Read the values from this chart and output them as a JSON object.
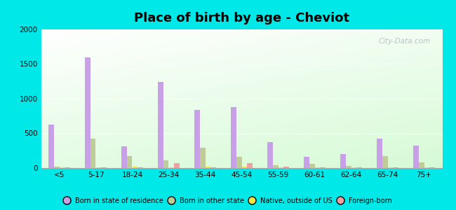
{
  "title": "Place of birth by age - Cheviot",
  "categories": [
    "<5",
    "5-17",
    "18-24",
    "25-34",
    "35-44",
    "45-54",
    "55-59",
    "60-61",
    "62-64",
    "65-74",
    "75+"
  ],
  "series": {
    "Born in state of residence": [
      630,
      1600,
      310,
      1240,
      840,
      880,
      370,
      160,
      200,
      420,
      320
    ],
    "Born in other state": [
      20,
      420,
      170,
      110,
      295,
      165,
      45,
      60,
      30,
      175,
      80
    ],
    "Native, outside of US": [
      10,
      15,
      20,
      15,
      20,
      20,
      15,
      10,
      10,
      15,
      15
    ],
    "Foreign-born": [
      10,
      15,
      15,
      75,
      15,
      75,
      20,
      10,
      10,
      15,
      15
    ]
  },
  "colors": {
    "Born in state of residence": "#c8a0e8",
    "Born in other state": "#c0cc98",
    "Native, outside of US": "#f0e840",
    "Foreign-born": "#f0a0a0"
  },
  "ylim": [
    0,
    2000
  ],
  "yticks": [
    0,
    500,
    1000,
    1500,
    2000
  ],
  "outer_background": "#00e8e8",
  "bar_width": 0.15,
  "title_fontsize": 13,
  "watermark": "City-Data.com"
}
